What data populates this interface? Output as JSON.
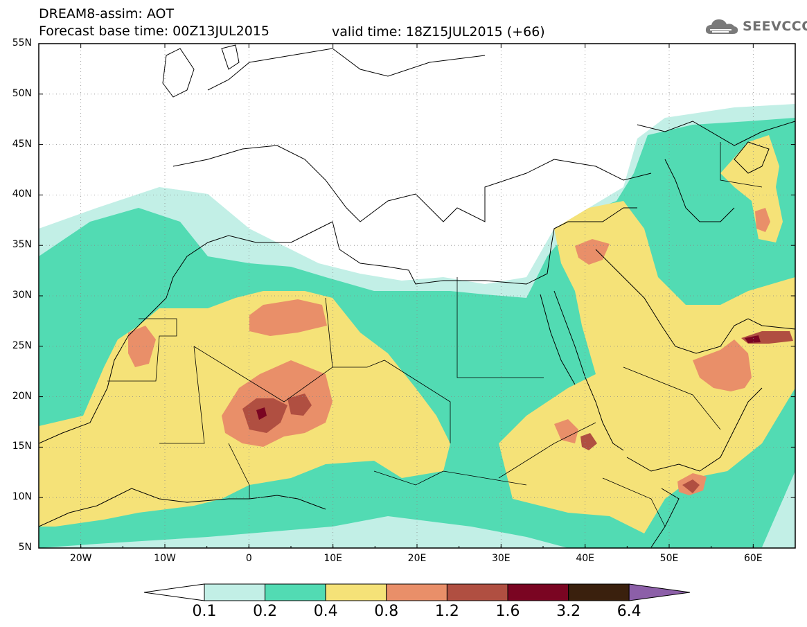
{
  "header": {
    "line1": "DREAM8-assim: AOT",
    "line2": "Forecast base time: 00Z13JUL2015",
    "line3": "valid time: 18Z15JUL2015 (+66)"
  },
  "logo": {
    "text": "SEEVCCC",
    "icon": "cloud-icon"
  },
  "map": {
    "lat_labels": [
      "55N",
      "50N",
      "45N",
      "40N",
      "35N",
      "30N",
      "25N",
      "20N",
      "15N",
      "10N",
      "5N"
    ],
    "lon_labels": [
      "20W",
      "10W",
      "0",
      "10E",
      "20E",
      "30E",
      "40E",
      "50E",
      "60E"
    ],
    "lat_range": [
      5,
      55
    ],
    "lon_range": [
      -25,
      65
    ]
  },
  "colorbar": {
    "labels": [
      "0.1",
      "0.2",
      "0.4",
      "0.8",
      "1.2",
      "1.6",
      "3.2",
      "6.4"
    ],
    "colors": [
      "#ffffff",
      "#c2efe6",
      "#52dbb3",
      "#f5e278",
      "#e98f69",
      "#b04f41",
      "#7a0522",
      "#3a200d",
      "#8c5fa8"
    ]
  },
  "colors": {
    "c1": "#c2efe6",
    "c2": "#52dbb3",
    "c3": "#f5e278",
    "c4": "#e98f69",
    "c5": "#b04f41",
    "c6": "#7a0522"
  }
}
